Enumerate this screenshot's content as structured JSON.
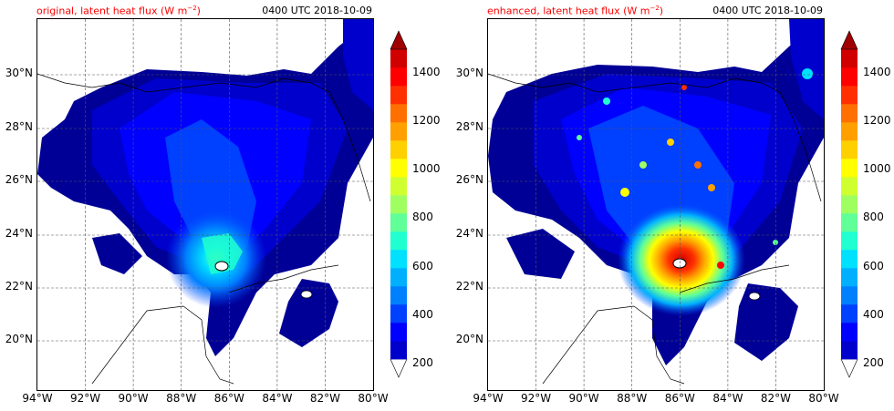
{
  "panels": [
    {
      "id": "original",
      "title": "original, latent heat flux (W m",
      "title_exp": "−2",
      "title_close": ")",
      "timestamp": "0400 UTC 2018-10-09"
    },
    {
      "id": "enhanced",
      "title": "enhanced, latent heat flux (W m",
      "title_exp": "−2",
      "title_close": ")",
      "timestamp": "0400 UTC 2018-10-09"
    }
  ],
  "axes": {
    "lat_labels": [
      "30°N",
      "28°N",
      "26°N",
      "24°N",
      "22°N",
      "20°N"
    ],
    "lon_labels": [
      "94°W",
      "92°W",
      "90°W",
      "88°W",
      "86°W",
      "84°W",
      "82°W",
      "80°W"
    ],
    "lon_range": [
      -94,
      -80
    ],
    "lat_range": [
      18.2,
      32.1
    ],
    "grid": "dashed"
  },
  "colorbar": {
    "labels": [
      "1400",
      "1200",
      "1000",
      "800",
      "600",
      "400",
      "200"
    ],
    "range": [
      200,
      1500
    ],
    "extend": "both",
    "colormap": "jet",
    "colors": [
      "#000096",
      "#0000CD",
      "#0000FF",
      "#0040FF",
      "#0080FF",
      "#00B0FF",
      "#00E0FF",
      "#20FFD0",
      "#60FF98",
      "#A0FF60",
      "#D0FF30",
      "#FFFF00",
      "#FFD000",
      "#FFA000",
      "#FF7000",
      "#FF3000",
      "#FF0000",
      "#D00000",
      "#A00000"
    ]
  },
  "chart_data": [
    {
      "type": "heatmap",
      "title": "original, latent heat flux (W m−2)",
      "subtitle": "0400 UTC 2018-10-09",
      "x_range_deg": [
        -94,
        -80
      ],
      "y_range_deg": [
        18.2,
        32.1
      ],
      "value_range": [
        200,
        1500
      ],
      "storm_center": [
        -86.2,
        22.8
      ],
      "peak_value_approx": 900
    },
    {
      "type": "heatmap",
      "title": "enhanced, latent heat flux (W m−2)",
      "subtitle": "0400 UTC 2018-10-09",
      "x_range_deg": [
        -94,
        -80
      ],
      "y_range_deg": [
        18.2,
        32.1
      ],
      "value_range": [
        200,
        1500
      ],
      "storm_center": [
        -86.0,
        22.9
      ],
      "peak_value_approx": 1450
    }
  ]
}
